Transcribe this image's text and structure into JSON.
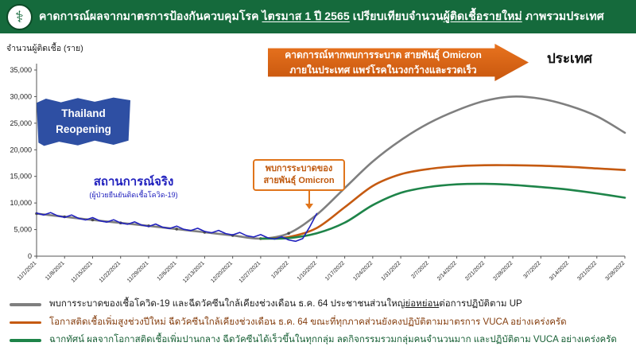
{
  "header": {
    "title_segments": [
      {
        "text": "คาดการณ์ผลจากมาตรการป้องกันควบคุมโรค ",
        "underline": false
      },
      {
        "text": "ไตรมาส 1 ปี 2565",
        "underline": true
      },
      {
        "text": " เปรียบเทียบจำนวน",
        "underline": false
      },
      {
        "text": "ผู้ติดเชื้อรายใหม่",
        "underline": true
      },
      {
        "text": " ภาพรวมประเทศ",
        "underline": false
      }
    ],
    "logo_icon": "moph-medical-seal",
    "header_color": "#156a3c"
  },
  "annotations": {
    "region_label": "ประเทศ",
    "arrow_banner": {
      "line1": "คาดการณ์หากพบการระบาด สายพันธุ์ Omicron",
      "line2": "ภายในประเทศ แพร่โรคในวงกว้างและรวดเร็ว",
      "color": "#d2601a"
    },
    "flag": {
      "line1": "Thailand",
      "line2": "Reopening",
      "color": "#2e4fa3"
    },
    "actual_label": "สถานการณ์จริง",
    "actual_sublabel": "(ผู้ป่วยยืนยันติดเชื้อโควิด-19)",
    "callout": {
      "line1": "พบการระบาดของ",
      "line2": "สายพันธุ์ Omicron",
      "color": "#c05a10"
    }
  },
  "chart_data": {
    "type": "line",
    "title": "คาดการณ์ผลจากมาตรการป้องกันควบคุมโรค ไตรมาส 1 ปี 2565 เปรียบเทียบจำนวนผู้ติดเชื้อรายใหม่ ภาพรวมประเทศ",
    "ylabel": "จำนวนผู้ติดเชื้อ (ราย)",
    "xlabel": "",
    "ylim": [
      0,
      35000
    ],
    "grid": false,
    "legend_position": "bottom",
    "yticks": [
      {
        "value": 0,
        "label": "0"
      },
      {
        "value": 5000,
        "label": "5,000"
      },
      {
        "value": 10000,
        "label": "10,000"
      },
      {
        "value": 15000,
        "label": "15,000"
      },
      {
        "value": 20000,
        "label": "20,000"
      },
      {
        "value": 25000,
        "label": "25,000"
      },
      {
        "value": 30000,
        "label": "30,000"
      },
      {
        "value": 35000,
        "label": "35,000"
      }
    ],
    "x_labels": [
      "11/1/2021",
      "11/8/2021",
      "11/15/2021",
      "11/22/2021",
      "11/29/2021",
      "12/6/2021",
      "12/13/2021",
      "12/20/2021",
      "12/27/2021",
      "1/3/2022",
      "1/10/2022",
      "1/17/2022",
      "1/24/2022",
      "1/31/2022",
      "2/7/2022",
      "2/14/2022",
      "2/21/2022",
      "2/28/2022",
      "3/7/2022",
      "3/14/2022",
      "3/21/2022",
      "3/28/2022"
    ],
    "series": [
      {
        "name": "scenario-worst-gray",
        "color": "#7f7f7f",
        "smooth": true,
        "width": 2.6,
        "markers_upto": 9,
        "values": [
          8000,
          7400,
          6800,
          6250,
          5700,
          5100,
          4500,
          3900,
          3300,
          4300,
          7800,
          12800,
          17800,
          21800,
          25000,
          27400,
          29200,
          30000,
          29600,
          28300,
          26300,
          23200
        ]
      },
      {
        "name": "scenario-mid-orange",
        "color": "#c55a11",
        "smooth": true,
        "width": 2.6,
        "x": [
          8,
          9,
          10,
          11,
          12,
          13,
          14,
          15,
          16,
          17,
          18,
          19,
          20,
          21
        ],
        "values": [
          3300,
          3600,
          5300,
          9200,
          13200,
          15400,
          16400,
          16900,
          17100,
          17100,
          17000,
          16800,
          16500,
          16200
        ]
      },
      {
        "name": "scenario-best-green",
        "color": "#1e8449",
        "smooth": true,
        "width": 2.6,
        "x": [
          8,
          9,
          10,
          11,
          12,
          13,
          14,
          15,
          16,
          17,
          18,
          19,
          20,
          21
        ],
        "values": [
          3300,
          3400,
          4300,
          6300,
          9600,
          11900,
          13000,
          13500,
          13600,
          13400,
          13000,
          12500,
          11800,
          11000
        ]
      },
      {
        "name": "actual-confirmed-cases-blue",
        "color": "#2121be",
        "smooth": false,
        "width": 1.6,
        "x": [
          0,
          0.25,
          0.5,
          0.75,
          1,
          1.25,
          1.5,
          1.75,
          2,
          2.25,
          2.5,
          2.75,
          3,
          3.25,
          3.5,
          3.75,
          4,
          4.25,
          4.5,
          4.75,
          5,
          5.25,
          5.5,
          5.75,
          6,
          6.25,
          6.5,
          6.75,
          7,
          7.25,
          7.5,
          7.75,
          8,
          8.25,
          8.5,
          8.75,
          9,
          9.25,
          9.5,
          9.75,
          10
        ],
        "values": [
          8100,
          7750,
          8200,
          7600,
          7300,
          7750,
          7100,
          6800,
          7250,
          6650,
          6400,
          6850,
          6250,
          6000,
          6450,
          5850,
          5600,
          6050,
          5450,
          5200,
          5650,
          5050,
          4800,
          5250,
          4650,
          4400,
          4850,
          4250,
          4000,
          4450,
          3850,
          3600,
          4050,
          3450,
          3200,
          3650,
          3050,
          2800,
          3300,
          5500,
          8000
        ]
      }
    ]
  },
  "legend": [
    {
      "color": "#7f7f7f",
      "text_color": "#1a1a1a",
      "segments": [
        {
          "text": "พบการระบาดของเชื้อโควิด-19 และฉีดวัคซีนใกล้เคียงช่วงเดือน ธ.ค. 64 ประชาชนส่วนใหญ่",
          "underline": false
        },
        {
          "text": "ย่อหย่อน",
          "underline": true
        },
        {
          "text": "ต่อการปฏิบัติตาม UP",
          "underline": false
        }
      ]
    },
    {
      "color": "#c55a11",
      "text_color": "#843c0c",
      "segments": [
        {
          "text": "โอกาสติดเชื้อเพิ่มสูงช่วงปีใหม่ ฉีดวัคซีนใกล้เคียงช่วงเดือน ธ.ค. 64 ขณะที่ทุกภาคส่วนยังคงปฏิบัติตามมาตรการ VUCA อย่างเคร่งครัด",
          "underline": false
        }
      ]
    },
    {
      "color": "#1e8449",
      "text_color": "#155e33",
      "segments": [
        {
          "text": "ฉากทัศน์ ผลจากโอกาสติดเชื้อเพิ่มปานกลาง ฉีดวัคซีนได้เร็วขึ้นในทุกกลุ่ม ลดกิจกรรมรวมกลุ่มคนจำนวนมาก และปฏิบัติตาม VUCA อย่างเคร่งครัด",
          "underline": false
        }
      ]
    }
  ]
}
